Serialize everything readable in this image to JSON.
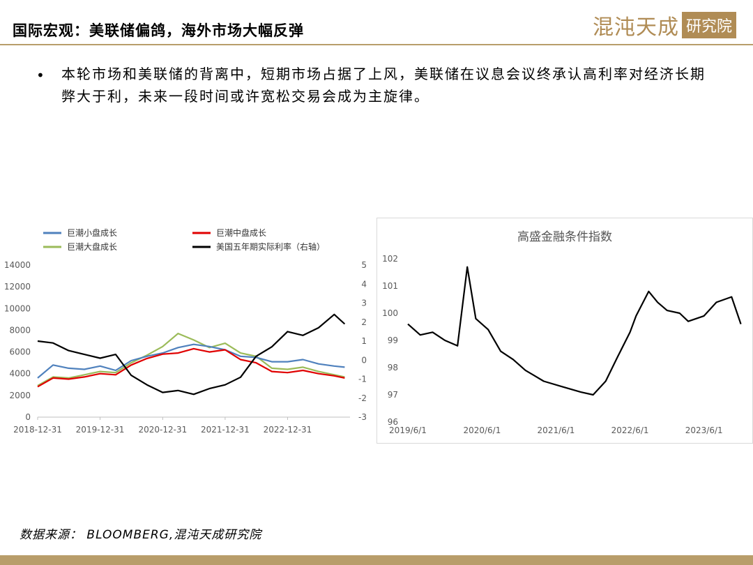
{
  "header": {
    "title": "国际宏观：美联储偏鸽，海外市场大幅反弹",
    "logo_script": "混沌天成",
    "logo_box": "研究院"
  },
  "body": {
    "bullet_text": "本轮市场和美联储的背离中，短期市场占据了上风，美联储在议息会议终承认高利率对经济长期弊大于利，未来一段时间或许宽松交易会成为主旋律。"
  },
  "colors": {
    "gold": "#b89d6a",
    "small_cap": "#4f81bd",
    "mid_cap": "#e00000",
    "large_cap": "#9bbb59",
    "rate": "#000000"
  },
  "chart_data": [
    {
      "type": "line",
      "title": "",
      "x_ticks": [
        "2018-12-31",
        "2019-12-31",
        "2020-12-31",
        "2021-12-31",
        "2022-12-31"
      ],
      "x": [
        "2018-12-31",
        "2019-03-31",
        "2019-06-30",
        "2019-09-30",
        "2019-12-31",
        "2020-03-31",
        "2020-06-30",
        "2020-09-30",
        "2020-12-31",
        "2021-03-31",
        "2021-06-30",
        "2021-09-30",
        "2021-12-31",
        "2022-03-31",
        "2022-06-30",
        "2022-09-30",
        "2022-12-31",
        "2023-03-31",
        "2023-06-30",
        "2023-09-30",
        "2023-11-30"
      ],
      "ylim_left": [
        0,
        14000
      ],
      "yticks_left": [
        "0",
        "2000",
        "4000",
        "6000",
        "8000",
        "10000",
        "12000",
        "14000"
      ],
      "ylim_right": [
        -3,
        5
      ],
      "yticks_right": [
        "-3",
        "-2",
        "-1",
        "0",
        "1",
        "2",
        "3",
        "4",
        "5"
      ],
      "legend_position": "top",
      "series": [
        {
          "name": "巨潮小盘成长",
          "axis": "left",
          "color": "#4f81bd",
          "values": [
            3600,
            4800,
            4500,
            4400,
            4700,
            4300,
            5200,
            5600,
            5900,
            6400,
            6700,
            6500,
            6200,
            5600,
            5500,
            5100,
            5100,
            5300,
            4900,
            4700,
            4600
          ]
        },
        {
          "name": "巨潮中盘成长",
          "axis": "left",
          "color": "#e00000",
          "values": [
            2800,
            3600,
            3500,
            3700,
            4000,
            3900,
            4800,
            5400,
            5800,
            5900,
            6300,
            6000,
            6200,
            5300,
            5000,
            4200,
            4100,
            4300,
            4000,
            3800,
            3600
          ]
        },
        {
          "name": "巨潮大盘成长",
          "axis": "left",
          "color": "#9bbb59",
          "values": [
            2900,
            3700,
            3600,
            3900,
            4200,
            4100,
            5000,
            5700,
            6500,
            7700,
            7100,
            6400,
            6800,
            5900,
            5600,
            4500,
            4400,
            4600,
            4200,
            3900,
            3700
          ]
        },
        {
          "name": "美国五年期实际利率（右轴）",
          "axis": "right",
          "color": "#000000",
          "values": [
            1.0,
            0.9,
            0.5,
            0.3,
            0.1,
            0.3,
            -0.8,
            -1.3,
            -1.7,
            -1.6,
            -1.8,
            -1.5,
            -1.3,
            -0.9,
            0.2,
            0.7,
            1.5,
            1.3,
            1.7,
            2.4,
            1.9
          ]
        }
      ]
    },
    {
      "type": "line",
      "title": "高盛金融条件指数",
      "x_ticks": [
        "2019/6/1",
        "2020/6/1",
        "2021/6/1",
        "2022/6/1",
        "2023/6/1"
      ],
      "x": [
        "2019-06-01",
        "2019-08-01",
        "2019-10-01",
        "2019-12-01",
        "2020-02-01",
        "2020-03-20",
        "2020-05-01",
        "2020-07-01",
        "2020-09-01",
        "2020-11-01",
        "2021-01-01",
        "2021-04-01",
        "2021-07-01",
        "2021-10-01",
        "2021-12-01",
        "2022-02-01",
        "2022-04-01",
        "2022-06-01",
        "2022-07-01",
        "2022-09-01",
        "2022-10-15",
        "2022-12-01",
        "2023-02-01",
        "2023-03-15",
        "2023-06-01",
        "2023-08-01",
        "2023-10-15",
        "2023-11-30"
      ],
      "values": [
        99.6,
        99.2,
        99.3,
        99.0,
        98.8,
        101.7,
        99.8,
        99.4,
        98.6,
        98.3,
        97.9,
        97.5,
        97.3,
        97.1,
        97.0,
        97.5,
        98.4,
        99.3,
        99.9,
        100.8,
        100.4,
        100.1,
        100.0,
        99.7,
        99.9,
        100.4,
        100.6,
        99.6
      ],
      "ylim": [
        96,
        102
      ],
      "yticks": [
        "96",
        "97",
        "98",
        "99",
        "100",
        "101",
        "102"
      ],
      "grid": false
    }
  ],
  "source": "数据来源： BLOOMBERG,混沌天成研究院"
}
